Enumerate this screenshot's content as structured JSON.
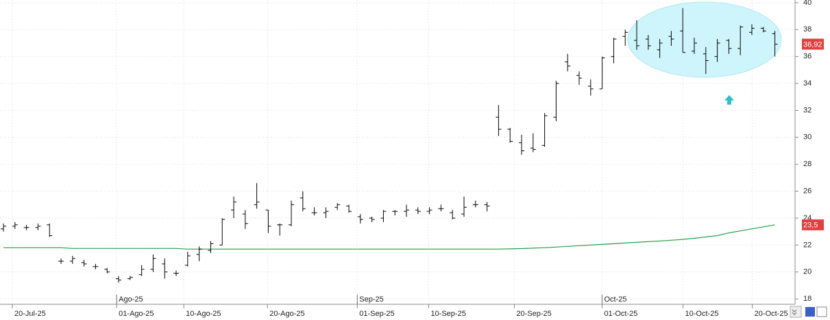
{
  "chart_data": {
    "type": "ohlc",
    "ylim": [
      17.6,
      40.2
    ],
    "yticks": [
      18,
      20,
      22,
      24,
      26,
      28,
      30,
      32,
      34,
      36,
      38,
      40
    ],
    "xlim": [
      -0.3,
      68.75
    ],
    "xticks": [
      {
        "value": 0.77,
        "label": "20-Jul-25"
      },
      {
        "value": 9.83,
        "label": "01-Ago-25"
      },
      {
        "value": 15.66,
        "label": "10-Ago-25"
      },
      {
        "value": 22.93,
        "label": "20-Ago-25"
      },
      {
        "value": 30.73,
        "label": "01-Sep-25"
      },
      {
        "value": 36.93,
        "label": "10-Sep-25"
      },
      {
        "value": 44.37,
        "label": "20-Sep-25"
      },
      {
        "value": 51.99,
        "label": "01-Oct-25"
      },
      {
        "value": 59.02,
        "label": "10-Oct-25"
      },
      {
        "value": 65.04,
        "label": "20-Oct-25"
      }
    ],
    "month_ticks": [
      {
        "value": 9.83,
        "label": "Ago-25"
      },
      {
        "value": 30.73,
        "label": "Sep-25"
      },
      {
        "value": 51.99,
        "label": "Oct-25"
      }
    ],
    "grid": true,
    "color": "#000000",
    "open": [
      23.2,
      23.4,
      23.3,
      23.3,
      23.5,
      20.8,
      20.8,
      20.7,
      20.4,
      20.2,
      19.5,
      19.5,
      19.8,
      20.2,
      20.6,
      19.9,
      20.5,
      21.3,
      21.6,
      22.0,
      24.6,
      24.3,
      25.0,
      24.6,
      23.5,
      23.5,
      25.5,
      24.4,
      24.4,
      24.8,
      24.9,
      24.1,
      24.0,
      24.0,
      24.5,
      24.5,
      24.6,
      24.5,
      24.7,
      24.4,
      24.3,
      25.0,
      25.0,
      31.5,
      30.6,
      29.6,
      29.2,
      29.4,
      31.5,
      35.6,
      34.6,
      33.8,
      33.6,
      36.0,
      37.5,
      37.2,
      37.3,
      36.5,
      37.5,
      37.9,
      36.4,
      36.2,
      36.0,
      37.2,
      36.6,
      37.8,
      38.1,
      37.7
    ],
    "high": [
      23.6,
      23.7,
      23.5,
      23.6,
      23.6,
      21.0,
      21.2,
      20.9,
      20.6,
      20.3,
      19.7,
      19.7,
      20.5,
      21.3,
      21.0,
      20.1,
      21.5,
      21.9,
      22.3,
      24.0,
      25.6,
      24.6,
      26.6,
      24.6,
      23.6,
      25.3,
      26.0,
      24.8,
      24.8,
      25.1,
      25.0,
      24.3,
      24.1,
      24.6,
      24.6,
      25.0,
      24.8,
      24.8,
      25.0,
      24.6,
      25.6,
      25.3,
      25.2,
      32.4,
      30.7,
      30.2,
      30.3,
      31.8,
      34.2,
      36.2,
      34.9,
      34.3,
      36.0,
      37.4,
      38.0,
      38.7,
      37.6,
      37.3,
      37.9,
      39.6,
      37.4,
      36.7,
      37.3,
      37.3,
      38.3,
      38.4,
      38.2,
      37.9
    ],
    "low": [
      23.0,
      23.2,
      23.1,
      23.1,
      22.6,
      20.6,
      20.6,
      20.4,
      20.2,
      19.9,
      19.2,
      19.4,
      19.7,
      20.0,
      19.5,
      19.7,
      20.4,
      20.8,
      21.4,
      22.0,
      24.0,
      23.2,
      24.7,
      22.9,
      22.7,
      23.4,
      24.5,
      24.2,
      24.0,
      24.6,
      24.4,
      23.6,
      23.7,
      23.7,
      24.2,
      24.1,
      24.3,
      24.3,
      24.5,
      23.9,
      24.1,
      24.8,
      24.5,
      30.1,
      29.6,
      28.7,
      28.9,
      29.3,
      31.2,
      34.9,
      33.9,
      33.1,
      33.6,
      35.5,
      36.8,
      36.5,
      36.5,
      35.9,
      36.8,
      36.3,
      36.2,
      34.7,
      35.6,
      36.2,
      36.1,
      37.6,
      37.8,
      36.0
    ],
    "close": [
      23.4,
      23.5,
      23.3,
      23.4,
      22.7,
      20.8,
      21.0,
      20.6,
      20.4,
      20.0,
      19.4,
      19.6,
      20.2,
      21.0,
      20.0,
      19.9,
      21.2,
      21.7,
      22.1,
      23.9,
      25.2,
      23.6,
      25.2,
      23.4,
      23.5,
      25.0,
      24.7,
      24.4,
      24.5,
      25.0,
      24.5,
      23.9,
      23.9,
      24.5,
      24.5,
      24.6,
      24.5,
      24.6,
      24.7,
      24.0,
      24.8,
      25.0,
      24.9,
      30.6,
      29.7,
      29.0,
      29.1,
      31.6,
      34.0,
      35.3,
      34.4,
      33.6,
      35.9,
      37.3,
      37.8,
      36.8,
      36.8,
      37.0,
      37.3,
      36.3,
      37.0,
      35.7,
      37.0,
      36.6,
      38.2,
      38.1,
      37.9,
      36.92
    ],
    "moving_average": {
      "color": "#22a04a",
      "values": [
        21.8,
        21.8,
        21.8,
        21.8,
        21.8,
        21.8,
        21.75,
        21.75,
        21.75,
        21.75,
        21.75,
        21.75,
        21.75,
        21.75,
        21.75,
        21.75,
        21.7,
        21.7,
        21.7,
        21.7,
        21.7,
        21.7,
        21.7,
        21.7,
        21.7,
        21.7,
        21.7,
        21.7,
        21.7,
        21.7,
        21.7,
        21.7,
        21.7,
        21.7,
        21.7,
        21.7,
        21.7,
        21.7,
        21.7,
        21.7,
        21.7,
        21.7,
        21.7,
        21.7,
        21.72,
        21.74,
        21.77,
        21.8,
        21.85,
        21.9,
        21.95,
        22.0,
        22.05,
        22.1,
        22.15,
        22.2,
        22.25,
        22.3,
        22.36,
        22.42,
        22.5,
        22.6,
        22.7,
        22.9,
        23.05,
        23.2,
        23.35,
        23.5
      ]
    },
    "price_label": {
      "value": 36.92,
      "label": "36,92",
      "color": "#e04040"
    },
    "ma_label": {
      "value": 23.5,
      "label": "23,5",
      "color": "#e04040"
    }
  }
}
